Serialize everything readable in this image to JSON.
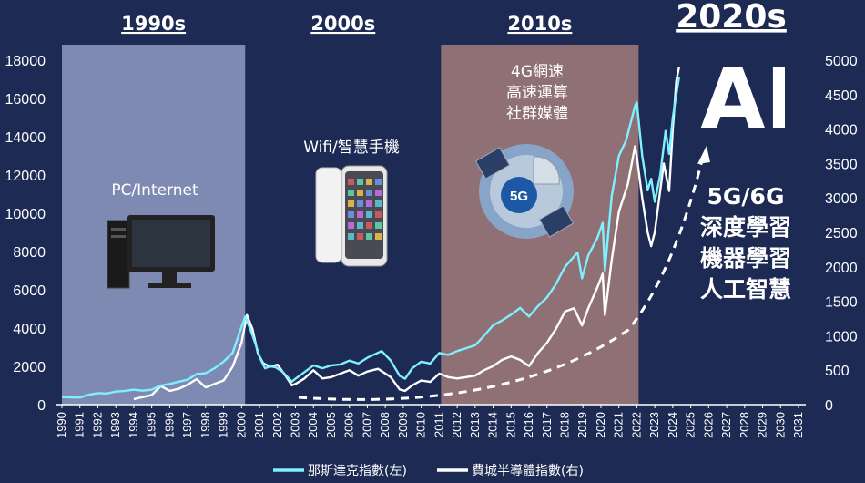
{
  "chart_data": {
    "type": "line",
    "title": "",
    "xlabel": "",
    "ylabel": "",
    "x_ticks": [
      "1990",
      "1991",
      "1992",
      "1993",
      "1994",
      "1995",
      "1996",
      "1997",
      "1998",
      "1999",
      "2000",
      "2001",
      "2002",
      "2003",
      "2004",
      "2005",
      "2006",
      "2007",
      "2008",
      "2009",
      "2010",
      "2011",
      "2012",
      "2013",
      "2014",
      "2015",
      "2016",
      "2017",
      "2018",
      "2019",
      "2020",
      "2021",
      "2022",
      "2023",
      "2024",
      "2025",
      "2026",
      "2027",
      "2028",
      "2029",
      "2030",
      "2031"
    ],
    "y_left_ticks": [
      "0",
      "2000",
      "4000",
      "6000",
      "8000",
      "10000",
      "12000",
      "14000",
      "16000",
      "18000"
    ],
    "y_right_ticks": [
      "0",
      "500",
      "1000",
      "1500",
      "2000",
      "2500",
      "3000",
      "3500",
      "4000",
      "4500",
      "5000"
    ],
    "y_left_range": [
      0,
      18000
    ],
    "y_right_range": [
      0,
      5000
    ],
    "x_range": [
      1990,
      2031
    ],
    "series": [
      {
        "name": "那斯達克指數(左)",
        "axis": "left",
        "color": "#7ff0ff",
        "points": [
          [
            1990.0,
            400
          ],
          [
            1990.5,
            380
          ],
          [
            1991.0,
            370
          ],
          [
            1991.5,
            520
          ],
          [
            1992.0,
            600
          ],
          [
            1992.5,
            580
          ],
          [
            1993.0,
            680
          ],
          [
            1993.5,
            720
          ],
          [
            1994.0,
            780
          ],
          [
            1994.5,
            730
          ],
          [
            1995.0,
            780
          ],
          [
            1995.5,
            1000
          ],
          [
            1996.0,
            1080
          ],
          [
            1996.5,
            1200
          ],
          [
            1997.0,
            1300
          ],
          [
            1997.5,
            1600
          ],
          [
            1998.0,
            1650
          ],
          [
            1998.5,
            1900
          ],
          [
            1999.0,
            2250
          ],
          [
            1999.5,
            2700
          ],
          [
            1999.9,
            3800
          ],
          [
            2000.2,
            4600
          ],
          [
            2000.5,
            3900
          ],
          [
            2000.8,
            3100
          ],
          [
            2001.0,
            2500
          ],
          [
            2001.3,
            1900
          ],
          [
            2001.6,
            2000
          ],
          [
            2001.9,
            1950
          ],
          [
            2002.3,
            1700
          ],
          [
            2002.8,
            1200
          ],
          [
            2003.0,
            1350
          ],
          [
            2003.5,
            1700
          ],
          [
            2004.0,
            2050
          ],
          [
            2004.5,
            1900
          ],
          [
            2005.0,
            2050
          ],
          [
            2005.5,
            2100
          ],
          [
            2006.0,
            2300
          ],
          [
            2006.5,
            2150
          ],
          [
            2007.0,
            2450
          ],
          [
            2007.8,
            2800
          ],
          [
            2008.3,
            2300
          ],
          [
            2008.8,
            1500
          ],
          [
            2009.1,
            1350
          ],
          [
            2009.5,
            1900
          ],
          [
            2010.0,
            2250
          ],
          [
            2010.5,
            2150
          ],
          [
            2011.0,
            2700
          ],
          [
            2011.5,
            2600
          ],
          [
            2012.0,
            2800
          ],
          [
            2012.5,
            2950
          ],
          [
            2013.0,
            3100
          ],
          [
            2013.5,
            3600
          ],
          [
            2014.0,
            4150
          ],
          [
            2014.5,
            4400
          ],
          [
            2015.0,
            4700
          ],
          [
            2015.5,
            5050
          ],
          [
            2016.0,
            4600
          ],
          [
            2016.5,
            5150
          ],
          [
            2017.0,
            5600
          ],
          [
            2017.5,
            6300
          ],
          [
            2018.0,
            7200
          ],
          [
            2018.7,
            7950
          ],
          [
            2018.95,
            6600
          ],
          [
            2019.3,
            7800
          ],
          [
            2019.8,
            8700
          ],
          [
            2020.1,
            9500
          ],
          [
            2020.22,
            7000
          ],
          [
            2020.6,
            10900
          ],
          [
            2021.0,
            13000
          ],
          [
            2021.4,
            13800
          ],
          [
            2021.9,
            15600
          ],
          [
            2022.0,
            15800
          ],
          [
            2022.3,
            13000
          ],
          [
            2022.6,
            11200
          ],
          [
            2022.8,
            11800
          ],
          [
            2023.0,
            10600
          ],
          [
            2023.3,
            12000
          ],
          [
            2023.6,
            14300
          ],
          [
            2023.8,
            13100
          ],
          [
            2024.0,
            15000
          ],
          [
            2024.2,
            16200
          ],
          [
            2024.35,
            17100
          ]
        ]
      },
      {
        "name": "費城半導體指數(右)",
        "axis": "right",
        "color": "#ffffff",
        "points": [
          [
            1994.0,
            80
          ],
          [
            1994.5,
            110
          ],
          [
            1995.0,
            140
          ],
          [
            1995.5,
            270
          ],
          [
            1996.0,
            200
          ],
          [
            1996.5,
            230
          ],
          [
            1997.0,
            290
          ],
          [
            1997.5,
            370
          ],
          [
            1998.0,
            250
          ],
          [
            1998.5,
            300
          ],
          [
            1999.0,
            350
          ],
          [
            1999.5,
            550
          ],
          [
            2000.0,
            900
          ],
          [
            2000.3,
            1300
          ],
          [
            2000.6,
            1100
          ],
          [
            2000.9,
            750
          ],
          [
            2001.2,
            600
          ],
          [
            2001.6,
            550
          ],
          [
            2002.0,
            580
          ],
          [
            2002.5,
            400
          ],
          [
            2002.8,
            280
          ],
          [
            2003.0,
            300
          ],
          [
            2003.5,
            380
          ],
          [
            2004.0,
            500
          ],
          [
            2004.5,
            380
          ],
          [
            2005.0,
            400
          ],
          [
            2005.5,
            450
          ],
          [
            2006.0,
            500
          ],
          [
            2006.5,
            420
          ],
          [
            2007.0,
            480
          ],
          [
            2007.6,
            520
          ],
          [
            2008.3,
            400
          ],
          [
            2008.8,
            220
          ],
          [
            2009.1,
            200
          ],
          [
            2009.5,
            280
          ],
          [
            2010.0,
            350
          ],
          [
            2010.5,
            330
          ],
          [
            2011.0,
            450
          ],
          [
            2011.5,
            400
          ],
          [
            2012.0,
            380
          ],
          [
            2012.5,
            400
          ],
          [
            2013.0,
            420
          ],
          [
            2013.5,
            500
          ],
          [
            2014.0,
            560
          ],
          [
            2014.5,
            650
          ],
          [
            2015.0,
            700
          ],
          [
            2015.5,
            650
          ],
          [
            2016.0,
            560
          ],
          [
            2016.5,
            750
          ],
          [
            2017.0,
            900
          ],
          [
            2017.5,
            1100
          ],
          [
            2018.0,
            1350
          ],
          [
            2018.5,
            1400
          ],
          [
            2018.95,
            1150
          ],
          [
            2019.3,
            1400
          ],
          [
            2019.8,
            1700
          ],
          [
            2020.1,
            1900
          ],
          [
            2020.22,
            1300
          ],
          [
            2020.6,
            2100
          ],
          [
            2021.0,
            2800
          ],
          [
            2021.5,
            3200
          ],
          [
            2021.9,
            3750
          ],
          [
            2022.0,
            3600
          ],
          [
            2022.3,
            3000
          ],
          [
            2022.6,
            2500
          ],
          [
            2022.8,
            2300
          ],
          [
            2023.0,
            2500
          ],
          [
            2023.5,
            3500
          ],
          [
            2023.8,
            3100
          ],
          [
            2024.0,
            4000
          ],
          [
            2024.2,
            4700
          ],
          [
            2024.35,
            4900
          ]
        ]
      }
    ],
    "decades": [
      {
        "label": "1990s",
        "from": 1990,
        "to": 2000.2,
        "shaded": true,
        "color": "#7f8ab3"
      },
      {
        "label": "2000s",
        "from": 2000.2,
        "to": 2011.1,
        "shaded": false
      },
      {
        "label": "2010s",
        "from": 2011.1,
        "to": 2022.1,
        "shaded": true,
        "color": "#8f7074"
      },
      {
        "label": "2020s",
        "from": 2022.1,
        "to": 2031,
        "shaded": false
      }
    ],
    "annotations": {
      "era_1990": "PC/Internet",
      "era_2000": "Wifi/智慧手機",
      "era_2010": [
        "4G網速",
        "高速運算",
        "社群媒體"
      ],
      "era_2010_icon_text": "5G",
      "era_2020_logo": "AI",
      "era_2020": [
        "5G/6G",
        "深度學習",
        "機器學習",
        "人工智慧"
      ]
    },
    "legend": {
      "position": "bottom",
      "entries": [
        "那斯達克指數(左)",
        "費城半導體指數(右)"
      ]
    },
    "grid": false
  },
  "icons": {
    "era_1990": "desktop-computer-icon",
    "era_2000": "smartphone-icon",
    "era_2010": "satellite-5g-icon",
    "era_2020": "ai-head-logo-icon"
  }
}
